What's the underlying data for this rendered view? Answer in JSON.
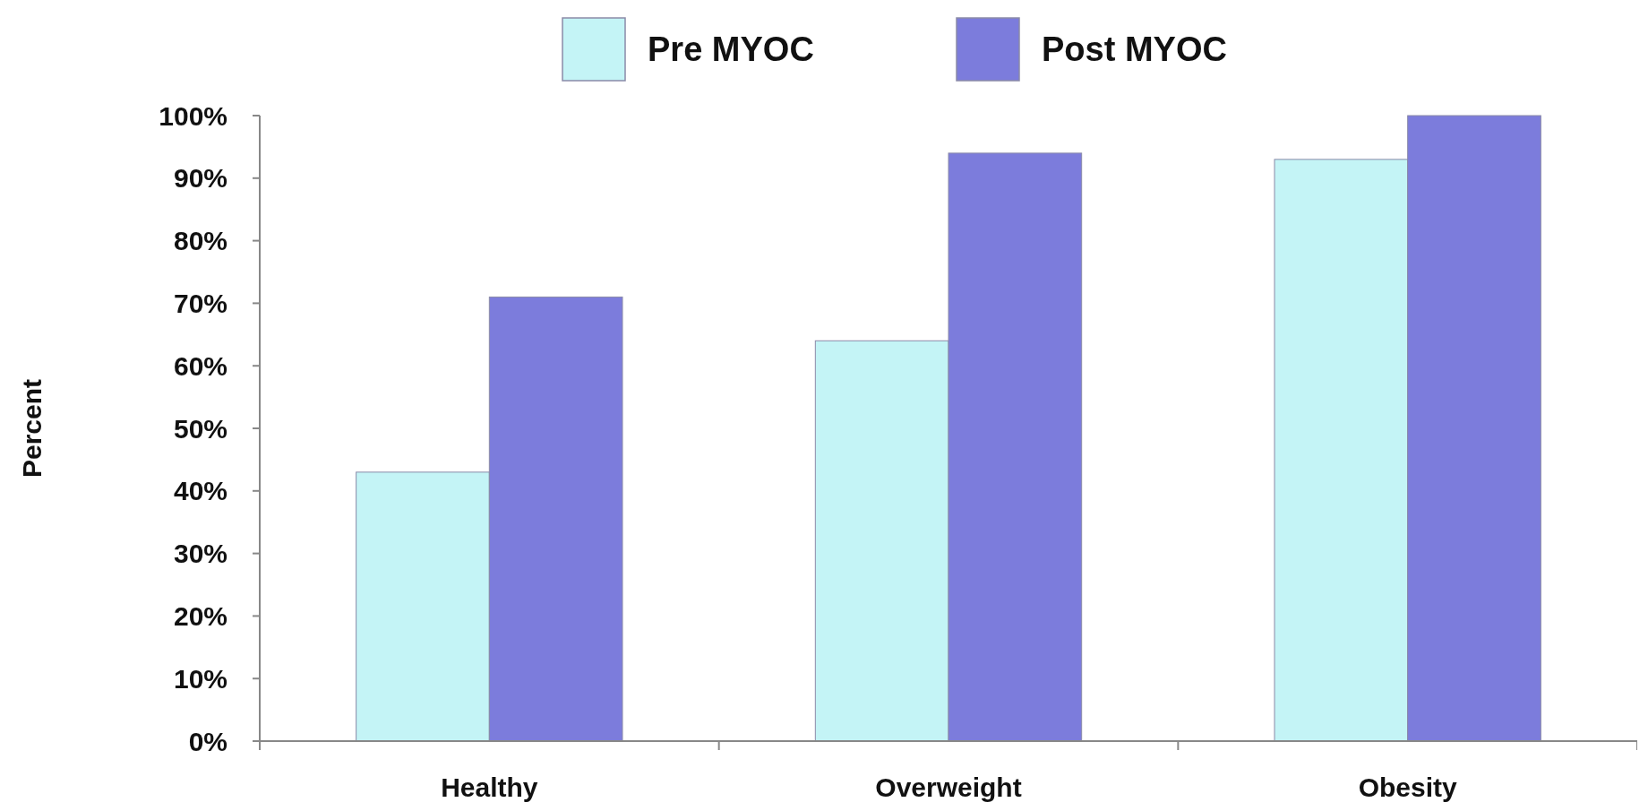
{
  "chart_data": {
    "type": "bar",
    "ylabel": "Percent",
    "categories": [
      "Healthy",
      "Overweight",
      "Obesity"
    ],
    "series": [
      {
        "name": "Pre MYOC",
        "color": "#c4f4f6",
        "values": [
          43,
          64,
          93
        ]
      },
      {
        "name": "Post MYOC",
        "color": "#7c7cdc",
        "values": [
          71,
          94,
          100
        ]
      }
    ],
    "ylim": [
      0,
      100
    ],
    "yticks": [
      {
        "value": 0,
        "label": "0%"
      },
      {
        "value": 10,
        "label": "10%"
      },
      {
        "value": 20,
        "label": "20%"
      },
      {
        "value": 30,
        "label": "30%"
      },
      {
        "value": 40,
        "label": "40%"
      },
      {
        "value": 50,
        "label": "50%"
      },
      {
        "value": 60,
        "label": "60%"
      },
      {
        "value": 70,
        "label": "70%"
      },
      {
        "value": 80,
        "label": "80%"
      },
      {
        "value": 90,
        "label": "90%"
      },
      {
        "value": 100,
        "label": "100%"
      }
    ],
    "grid": false,
    "legend": "top"
  }
}
